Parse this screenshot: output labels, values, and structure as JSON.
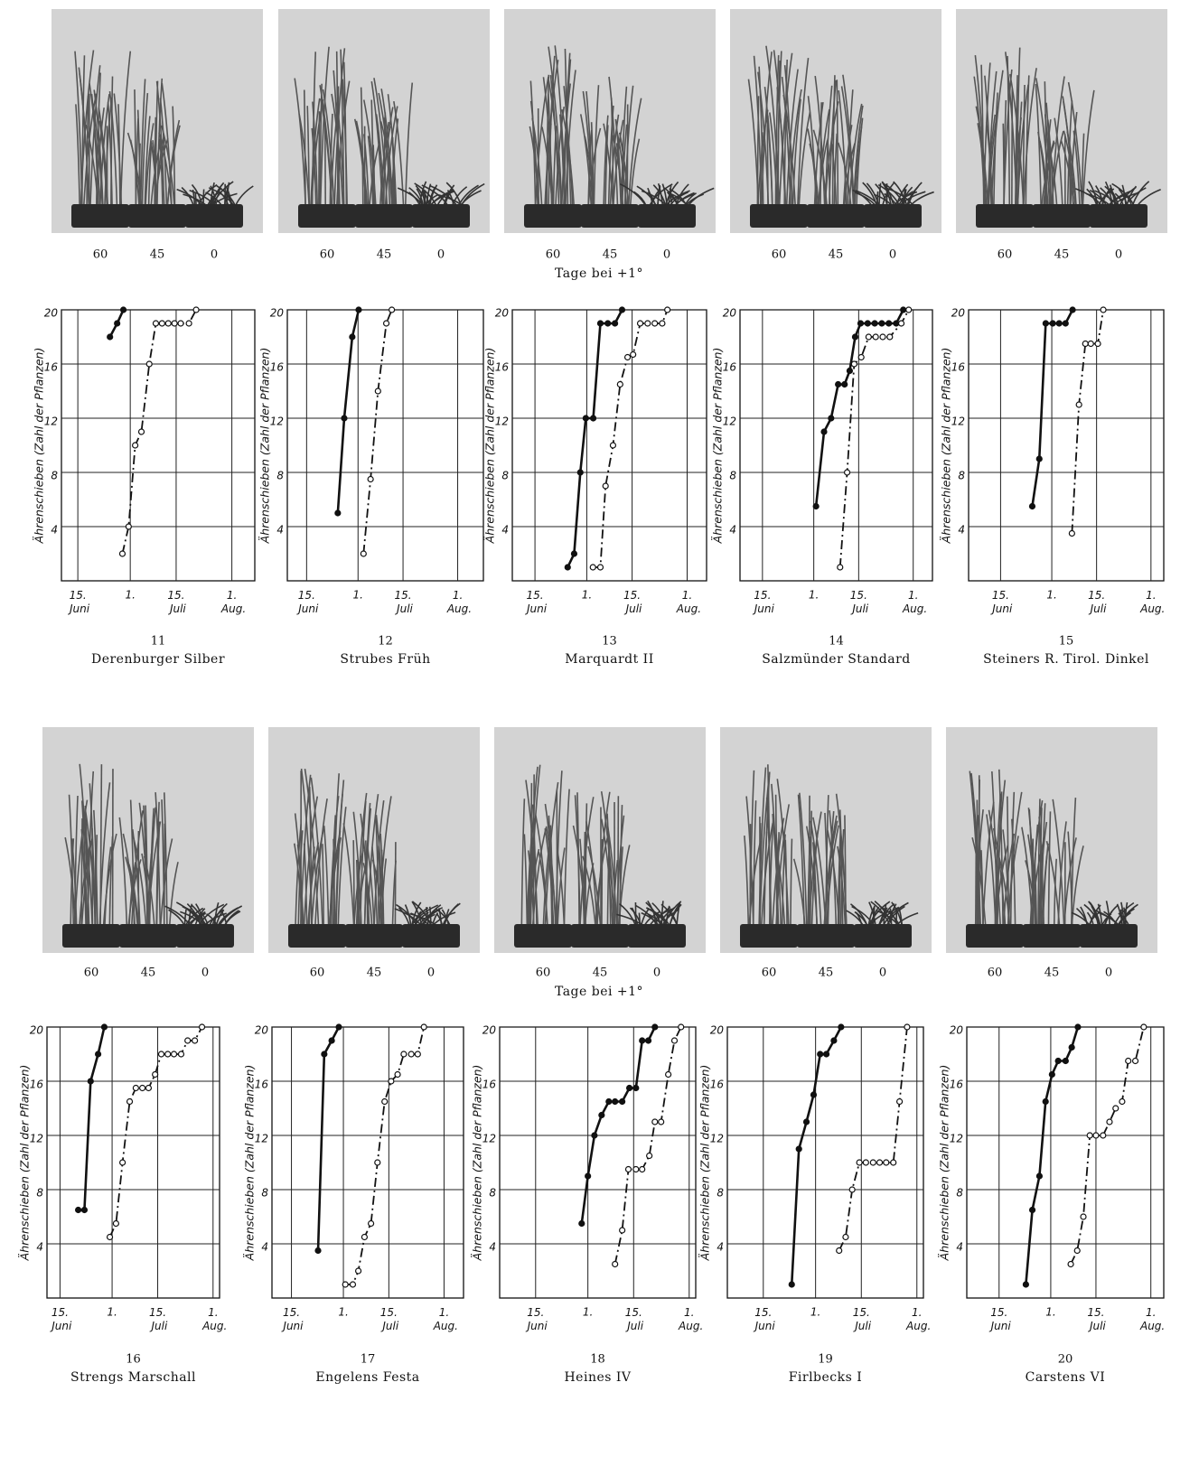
{
  "captions": [
    "Tage bei +1°",
    "Tage bei +1°"
  ],
  "panels": [
    {
      "number": "11",
      "name": "Derenburger Silber",
      "photo_labels": [
        "60",
        "45",
        "0"
      ]
    },
    {
      "number": "12",
      "name": "Strubes Früh",
      "photo_labels": [
        "60",
        "45",
        "0"
      ]
    },
    {
      "number": "13",
      "name": "Marquardt II",
      "photo_labels": [
        "60",
        "45",
        "0"
      ]
    },
    {
      "number": "14",
      "name": "Salzmünder Standard",
      "photo_labels": [
        "60",
        "45",
        "0"
      ]
    },
    {
      "number": "15",
      "name": "Steiners R. Tirol. Dinkel",
      "photo_labels": [
        "60",
        "45",
        "0"
      ]
    },
    {
      "number": "16",
      "name": "Strengs Marschall",
      "photo_labels": [
        "60",
        "45",
        "0"
      ]
    },
    {
      "number": "17",
      "name": "Engelens Festa",
      "photo_labels": [
        "60",
        "45",
        "0"
      ]
    },
    {
      "number": "18",
      "name": "Heines IV",
      "photo_labels": [
        "60",
        "45",
        "0"
      ]
    },
    {
      "number": "19",
      "name": "Firlbecks I",
      "photo_labels": [
        "60",
        "45",
        "0"
      ]
    },
    {
      "number": "20",
      "name": "Carstens VI",
      "photo_labels": [
        "60",
        "45",
        "0"
      ]
    }
  ],
  "chart_data": [
    {
      "type": "line",
      "y_label": "Ährenschieben (Zahl der Pflanzen)",
      "xlim": [
        10,
        69
      ],
      "ylim": [
        0,
        20
      ],
      "yticks": [
        4,
        8,
        12,
        16,
        20
      ],
      "grid": true,
      "xticks": [
        {
          "value": 15,
          "label": "15. Juni"
        },
        {
          "value": 31,
          "label": "1."
        },
        {
          "value": 45,
          "label": "15. Juli"
        },
        {
          "value": 62,
          "label": "1. Aug."
        }
      ],
      "series": [
        {
          "color": "#111111",
          "dash": "solid",
          "marker": "filled",
          "x": [
            24.8,
            27,
            28.9
          ],
          "values": [
            18,
            19,
            20
          ]
        },
        {
          "color": "#111111",
          "dash": "dashed",
          "marker": "open",
          "x": [
            28.6,
            30.5,
            32.5,
            34.4,
            36.8,
            38.8,
            40.7,
            42.6,
            44.5,
            46.4,
            48.9,
            51.1
          ],
          "values": [
            2,
            4,
            10,
            11,
            16,
            19,
            19,
            19,
            19,
            19,
            19,
            20
          ]
        }
      ]
    },
    {
      "type": "line",
      "y_label": "Ährenschieben (Zahl der Pflanzen)",
      "xlim": [
        9,
        70
      ],
      "ylim": [
        0,
        20
      ],
      "yticks": [
        4,
        8,
        12,
        16,
        20
      ],
      "grid": true,
      "xticks": [
        {
          "value": 15,
          "label": "15. Juni"
        },
        {
          "value": 31,
          "label": "1."
        },
        {
          "value": 45,
          "label": "15. Juli"
        },
        {
          "value": 62,
          "label": "1. Aug."
        }
      ],
      "series": [
        {
          "color": "#111111",
          "dash": "solid",
          "marker": "filled",
          "x": [
            24.7,
            26.7,
            29.2,
            31.2
          ],
          "values": [
            5,
            12,
            18,
            20
          ]
        },
        {
          "color": "#111111",
          "dash": "dashed",
          "marker": "open",
          "x": [
            32.7,
            34.9,
            37.2,
            39.8,
            41.5
          ],
          "values": [
            2,
            7.5,
            14,
            19,
            20
          ]
        }
      ]
    },
    {
      "type": "line",
      "y_label": "Ährenschieben (Zahl der Pflanzen)",
      "xlim": [
        8,
        68
      ],
      "ylim": [
        0,
        20
      ],
      "yticks": [
        4,
        8,
        12,
        16,
        20
      ],
      "grid": true,
      "xticks": [
        {
          "value": 15,
          "label": "15. Juni"
        },
        {
          "value": 31,
          "label": "1."
        },
        {
          "value": 45,
          "label": "15. Juli"
        },
        {
          "value": 62,
          "label": "1. Aug."
        }
      ],
      "series": [
        {
          "color": "#111111",
          "dash": "solid",
          "marker": "filled",
          "x": [
            25.1,
            27.1,
            29,
            30.7,
            33,
            35.2,
            37.5,
            39.7,
            41.9
          ],
          "values": [
            1,
            2,
            8,
            12,
            12,
            19,
            19,
            19,
            20
          ]
        },
        {
          "color": "#111111",
          "dash": "dashed",
          "marker": "open",
          "x": [
            32.9,
            35.2,
            36.8,
            39.1,
            41.3,
            43.6,
            45.3,
            47.5,
            49.8,
            52,
            54.3,
            55.9
          ],
          "values": [
            1,
            1,
            7,
            10,
            14.5,
            16.5,
            16.7,
            19,
            19,
            19,
            19,
            20
          ]
        }
      ]
    },
    {
      "type": "line",
      "y_label": "Ährenschieben (Zahl der Pflanzen)",
      "xlim": [
        8,
        68
      ],
      "ylim": [
        0,
        20
      ],
      "yticks": [
        4,
        8,
        12,
        16,
        20
      ],
      "grid": true,
      "xticks": [
        {
          "value": 15,
          "label": "15. Juni"
        },
        {
          "value": 31,
          "label": "1."
        },
        {
          "value": 45,
          "label": "15. Juli"
        },
        {
          "value": 62,
          "label": "1. Aug."
        }
      ],
      "series": [
        {
          "color": "#111111",
          "dash": "solid",
          "marker": "filled",
          "x": [
            31.7,
            34.2,
            36.4,
            38.6,
            40.6,
            42.2,
            43.9,
            45.6,
            47.8,
            50,
            52.2,
            54.4,
            56.7,
            58.9
          ],
          "values": [
            5.5,
            11,
            12,
            14.5,
            14.5,
            15.5,
            18,
            19,
            19,
            19,
            19,
            19,
            19,
            20
          ]
        },
        {
          "color": "#111111",
          "dash": "dashed",
          "marker": "open",
          "x": [
            39.2,
            41.4,
            43.6,
            45.8,
            48.1,
            50.3,
            52.5,
            54.7,
            58.3,
            60.6
          ],
          "values": [
            1,
            8,
            16,
            16.5,
            18,
            18,
            18,
            18,
            19,
            20
          ]
        }
      ]
    },
    {
      "type": "line",
      "y_label": "Ährenschieben (Zahl der Pflanzen)",
      "xlim": [
        5,
        66
      ],
      "ylim": [
        0,
        20
      ],
      "yticks": [
        4,
        8,
        12,
        16,
        20
      ],
      "grid": true,
      "xticks": [
        {
          "value": 15,
          "label": "15. Juni"
        },
        {
          "value": 31,
          "label": "1."
        },
        {
          "value": 45,
          "label": "15. Juli"
        },
        {
          "value": 62,
          "label": "1. Aug."
        }
      ],
      "series": [
        {
          "color": "#111111",
          "dash": "solid",
          "marker": "filled",
          "x": [
            24.9,
            27.1,
            29.1,
            31.3,
            33.3,
            35.3,
            37.5
          ],
          "values": [
            5.5,
            9,
            19,
            19,
            19,
            19,
            20
          ]
        },
        {
          "color": "#111111",
          "dash": "dashed",
          "marker": "open",
          "x": [
            37.3,
            39.5,
            41.5,
            43.2,
            45.4,
            47.1
          ],
          "values": [
            3.5,
            13,
            17.5,
            17.5,
            17.5,
            20
          ]
        }
      ]
    },
    {
      "type": "line",
      "y_label": "Ährenschieben (Zahl der Pflanzen)",
      "xlim": [
        11,
        64
      ],
      "ylim": [
        0,
        20
      ],
      "yticks": [
        4,
        8,
        12,
        16,
        20
      ],
      "grid": true,
      "xticks": [
        {
          "value": 15,
          "label": "15. Juni"
        },
        {
          "value": 31,
          "label": "1."
        },
        {
          "value": 45,
          "label": "15. Juli"
        },
        {
          "value": 62,
          "label": "1. Aug."
        }
      ],
      "series": [
        {
          "color": "#111111",
          "dash": "solid",
          "marker": "filled",
          "x": [
            20.6,
            22.5,
            24.4,
            26.7,
            28.6
          ],
          "values": [
            6.5,
            6.5,
            16,
            18,
            20
          ]
        },
        {
          "color": "#111111",
          "dash": "dashed",
          "marker": "open",
          "x": [
            30.3,
            32.2,
            34.2,
            36.4,
            38.3,
            40.3,
            42.2,
            44.2,
            46.1,
            48.1,
            50,
            52.2,
            54.2,
            56.4,
            58.6
          ],
          "values": [
            4.5,
            5.5,
            10,
            14.5,
            15.5,
            15.5,
            15.5,
            16.5,
            18,
            18,
            18,
            18,
            19,
            19,
            20
          ]
        }
      ]
    },
    {
      "type": "line",
      "y_label": "Ährenschieben (Zahl der Pflanzen)",
      "xlim": [
        9,
        68
      ],
      "ylim": [
        0,
        20
      ],
      "yticks": [
        4,
        8,
        12,
        16,
        20
      ],
      "grid": true,
      "xticks": [
        {
          "value": 15,
          "label": "15. Juni"
        },
        {
          "value": 31,
          "label": "1."
        },
        {
          "value": 45,
          "label": "15. Juli"
        },
        {
          "value": 62,
          "label": "1. Aug."
        }
      ],
      "series": [
        {
          "color": "#111111",
          "dash": "solid",
          "marker": "filled",
          "x": [
            23.2,
            25.1,
            27.4,
            29.6
          ],
          "values": [
            3.5,
            18,
            19,
            20
          ]
        },
        {
          "color": "#111111",
          "dash": "dashed",
          "marker": "open",
          "x": [
            31.6,
            33.9,
            35.6,
            37.5,
            39.5,
            41.5,
            43.7,
            45.7,
            47.7,
            49.6,
            51.9,
            53.9,
            55.8
          ],
          "values": [
            1,
            1,
            2,
            4.5,
            5.5,
            10,
            14.5,
            16,
            16.5,
            18,
            18,
            18,
            20
          ]
        }
      ]
    },
    {
      "type": "line",
      "y_label": "Ährenschieben (Zahl der Pflanzen)",
      "xlim": [
        4,
        64
      ],
      "ylim": [
        0,
        20
      ],
      "yticks": [
        4,
        8,
        12,
        16,
        20
      ],
      "grid": true,
      "xticks": [
        {
          "value": 15,
          "label": "15. Juni"
        },
        {
          "value": 31,
          "label": "1."
        },
        {
          "value": 45,
          "label": "15. Juli"
        },
        {
          "value": 62,
          "label": "1. Aug."
        }
      ],
      "series": [
        {
          "color": "#111111",
          "dash": "solid",
          "marker": "filled",
          "x": [
            29.1,
            31,
            33,
            35.2,
            37.4,
            39.3,
            41.5,
            43.7,
            45.7,
            47.6,
            49.5,
            51.5
          ],
          "values": [
            5.5,
            9,
            12,
            13.5,
            14.5,
            14.5,
            14.5,
            15.5,
            15.5,
            19,
            19,
            20
          ]
        },
        {
          "color": "#111111",
          "dash": "dashed",
          "marker": "open",
          "x": [
            39.3,
            41.5,
            43.4,
            45.7,
            47.6,
            49.8,
            51.5,
            53.4,
            55.6,
            57.5,
            59.5
          ],
          "values": [
            2.5,
            5,
            9.5,
            9.5,
            9.5,
            10.5,
            13,
            13,
            16.5,
            19,
            20
          ]
        }
      ]
    },
    {
      "type": "line",
      "y_label": "Ährenschieben (Zahl der Pflanzen)",
      "xlim": [
        4,
        64
      ],
      "ylim": [
        0,
        20
      ],
      "yticks": [
        4,
        8,
        12,
        16,
        20
      ],
      "grid": true,
      "xticks": [
        {
          "value": 15,
          "label": "15. Juni"
        },
        {
          "value": 31,
          "label": "1."
        },
        {
          "value": 45,
          "label": "15. Juli"
        },
        {
          "value": 62,
          "label": "1. Aug."
        }
      ],
      "series": [
        {
          "color": "#111111",
          "dash": "solid",
          "marker": "filled",
          "x": [
            23.7,
            25.9,
            28.2,
            30.4,
            32.4,
            34.3,
            36.6,
            38.8
          ],
          "values": [
            1,
            11,
            13,
            15,
            18,
            18,
            19,
            20
          ]
        },
        {
          "color": "#111111",
          "dash": "dashed",
          "marker": "open",
          "x": [
            38.2,
            40.2,
            42.2,
            44.4,
            46.4,
            48.6,
            50.6,
            52.6,
            54.8,
            56.7,
            59
          ],
          "values": [
            3.5,
            4.5,
            8,
            10,
            10,
            10,
            10,
            10,
            10,
            14.5,
            20
          ]
        }
      ]
    },
    {
      "type": "line",
      "y_label": "Ährenschieben (Zahl der Pflanzen)",
      "xlim": [
        5,
        66
      ],
      "ylim": [
        0,
        20
      ],
      "yticks": [
        4,
        8,
        12,
        16,
        20
      ],
      "grid": true,
      "xticks": [
        {
          "value": 15,
          "label": "15. Juni"
        },
        {
          "value": 31,
          "label": "1."
        },
        {
          "value": 45,
          "label": "15. Juli"
        },
        {
          "value": 62,
          "label": "1. Aug."
        }
      ],
      "series": [
        {
          "color": "#111111",
          "dash": "solid",
          "marker": "filled",
          "x": [
            23.3,
            25.3,
            27.5,
            29.4,
            31.4,
            33.3,
            35.6,
            37.5,
            39.4
          ],
          "values": [
            1,
            6.5,
            9,
            14.5,
            16.5,
            17.5,
            17.5,
            18.5,
            20
          ]
        },
        {
          "color": "#111111",
          "dash": "dashed",
          "marker": "open",
          "x": [
            37.2,
            39.2,
            41.1,
            43.1,
            45,
            47.2,
            49.2,
            51.1,
            53.1,
            55,
            57.2,
            59.8
          ],
          "values": [
            2.5,
            3.5,
            6,
            12,
            12,
            12,
            13,
            14,
            14.5,
            17.5,
            17.5,
            20
          ]
        }
      ]
    }
  ]
}
